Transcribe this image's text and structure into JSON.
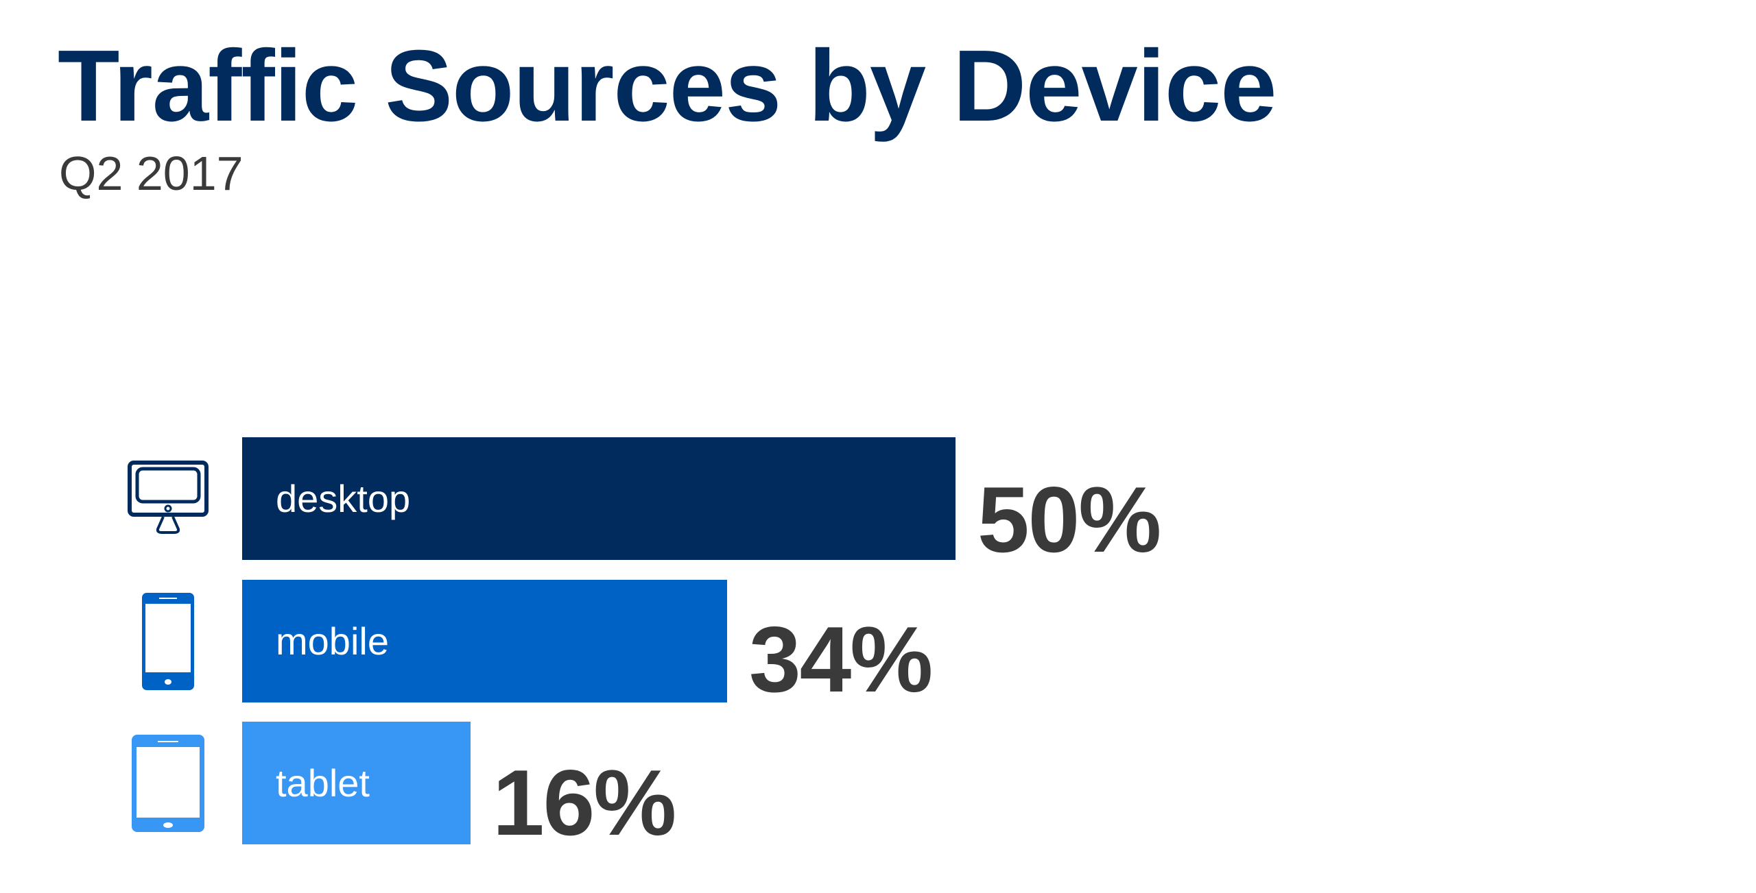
{
  "chart_data": {
    "type": "bar",
    "orientation": "horizontal",
    "title": "Traffic Sources by Device",
    "subtitle": "Q2 2017",
    "categories": [
      "desktop",
      "mobile",
      "tablet"
    ],
    "values": [
      50,
      34,
      16
    ],
    "value_labels": [
      "50%",
      "34%",
      "16%"
    ],
    "icons": [
      "desktop-monitor-icon",
      "mobile-phone-icon",
      "tablet-icon"
    ],
    "colors": [
      "#002b5c",
      "#0062c4",
      "#3896f5"
    ],
    "xlim": [
      0,
      50
    ],
    "grid": false,
    "legend": "none"
  }
}
